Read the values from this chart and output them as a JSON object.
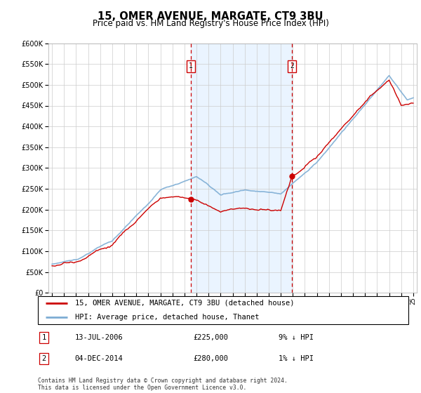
{
  "title": "15, OMER AVENUE, MARGATE, CT9 3BU",
  "subtitle": "Price paid vs. HM Land Registry's House Price Index (HPI)",
  "legend_line1": "15, OMER AVENUE, MARGATE, CT9 3BU (detached house)",
  "legend_line2": "HPI: Average price, detached house, Thanet",
  "annotation1_label": "1",
  "annotation1_date": "13-JUL-2006",
  "annotation1_price": "£225,000",
  "annotation1_hpi": "9% ↓ HPI",
  "annotation2_label": "2",
  "annotation2_date": "04-DEC-2014",
  "annotation2_price": "£280,000",
  "annotation2_hpi": "1% ↓ HPI",
  "footnote": "Contains HM Land Registry data © Crown copyright and database right 2024.\nThis data is licensed under the Open Government Licence v3.0.",
  "ylim": [
    0,
    600000
  ],
  "yticks": [
    0,
    50000,
    100000,
    150000,
    200000,
    250000,
    300000,
    350000,
    400000,
    450000,
    500000,
    550000,
    600000
  ],
  "x_start_year": 1995,
  "x_end_year": 2025,
  "sale1_year": 2006.54,
  "sale1_price": 225000,
  "sale2_year": 2014.92,
  "sale2_price": 280000,
  "hpi_color": "#7dadd4",
  "price_color": "#cc0000",
  "bg_color": "#ffffff",
  "grid_color": "#cccccc",
  "vline_color": "#cc0000",
  "shade_color": "#ddeeff"
}
